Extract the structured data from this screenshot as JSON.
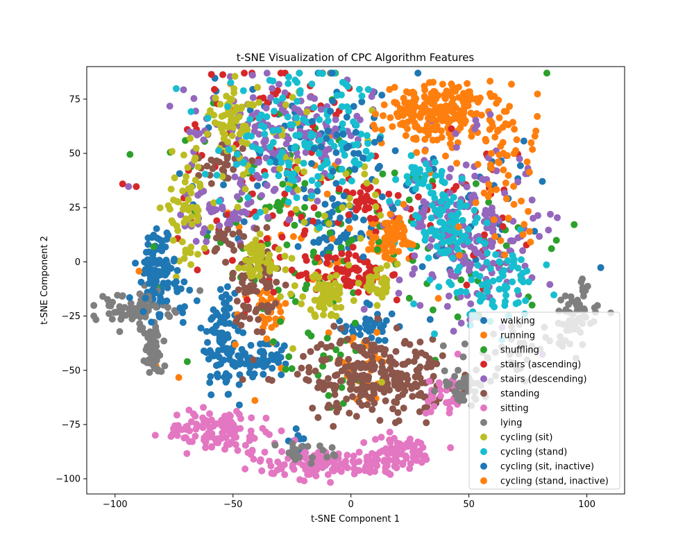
{
  "chart_data": {
    "type": "scatter",
    "title": "t-SNE Visualization of CPC Algorithm Features",
    "xlabel": "t-SNE Component 1",
    "ylabel": "t-SNE Component 2",
    "xlim": [
      -112,
      116
    ],
    "ylim": [
      -107,
      90
    ],
    "xticks": [
      -100,
      -50,
      0,
      50,
      100
    ],
    "yticks": [
      -100,
      -75,
      -50,
      -25,
      0,
      25,
      50,
      75
    ],
    "xtick_labels": [
      "−100",
      "−50",
      "0",
      "50",
      "100"
    ],
    "ytick_labels": [
      "−100",
      "−75",
      "−50",
      "−25",
      "0",
      "25",
      "50",
      "75"
    ],
    "grid": false,
    "legend_position": "lower-right",
    "series": [
      {
        "name": "walking",
        "color": "#1f77b4",
        "clusters": [
          {
            "x": -82,
            "y": -5,
            "sx": 3,
            "sy": 12,
            "n": 70
          },
          {
            "x": -55,
            "y": -35,
            "sx": 4,
            "sy": 15,
            "n": 90
          },
          {
            "x": -38,
            "y": -45,
            "sx": 6,
            "sy": 5,
            "n": 60
          },
          {
            "x": -10,
            "y": 12,
            "sx": 5,
            "sy": 6,
            "n": 40
          },
          {
            "x": 8,
            "y": -30,
            "sx": 6,
            "sy": 6,
            "n": 40
          },
          {
            "x": -20,
            "y": 50,
            "sx": 25,
            "sy": 20,
            "n": 80
          },
          {
            "x": -23,
            "y": -82,
            "sx": 2,
            "sy": 2,
            "n": 10
          },
          {
            "x": 50,
            "y": 20,
            "sx": 20,
            "sy": 20,
            "n": 40
          }
        ]
      },
      {
        "name": "running",
        "color": "#ff7f0e",
        "clusters": [
          {
            "x": 40,
            "y": 68,
            "sx": 13,
            "sy": 7,
            "n": 200
          },
          {
            "x": 15,
            "y": 10,
            "sx": 3,
            "sy": 5,
            "n": 50
          },
          {
            "x": -35,
            "y": -25,
            "sx": 4,
            "sy": 8,
            "n": 30
          },
          {
            "x": 5,
            "y": -50,
            "sx": 8,
            "sy": 8,
            "n": 30
          },
          {
            "x": -20,
            "y": 10,
            "sx": 30,
            "sy": 30,
            "n": 40
          }
        ]
      },
      {
        "name": "shuffling",
        "color": "#2ca02c",
        "clusters": [
          {
            "x": -30,
            "y": 20,
            "sx": 25,
            "sy": 30,
            "n": 100
          },
          {
            "x": 50,
            "y": 10,
            "sx": 20,
            "sy": 25,
            "n": 40
          },
          {
            "x": -10,
            "y": -50,
            "sx": 10,
            "sy": 10,
            "n": 20
          }
        ]
      },
      {
        "name": "stairs (ascending)",
        "color": "#d62728",
        "clusters": [
          {
            "x": 0,
            "y": -5,
            "sx": 8,
            "sy": 5,
            "n": 70
          },
          {
            "x": 5,
            "y": 28,
            "sx": 5,
            "sy": 5,
            "n": 30
          },
          {
            "x": -30,
            "y": 40,
            "sx": 25,
            "sy": 30,
            "n": 100
          },
          {
            "x": 50,
            "y": 30,
            "sx": 15,
            "sy": 20,
            "n": 40
          }
        ]
      },
      {
        "name": "stairs (descending)",
        "color": "#9467bd",
        "clusters": [
          {
            "x": -30,
            "y": 60,
            "sx": 20,
            "sy": 12,
            "n": 150
          },
          {
            "x": 50,
            "y": 15,
            "sx": 15,
            "sy": 20,
            "n": 200
          },
          {
            "x": -55,
            "y": 20,
            "sx": 10,
            "sy": 8,
            "n": 50
          }
        ]
      },
      {
        "name": "standing",
        "color": "#8c564b",
        "clusters": [
          {
            "x": 10,
            "y": -52,
            "sx": 15,
            "sy": 9,
            "n": 250
          },
          {
            "x": -40,
            "y": -15,
            "sx": 5,
            "sy": 15,
            "n": 70
          },
          {
            "x": -55,
            "y": 45,
            "sx": 5,
            "sy": 5,
            "n": 30
          },
          {
            "x": -50,
            "y": 10,
            "sx": 5,
            "sy": 5,
            "n": 20
          }
        ]
      },
      {
        "name": "sitting",
        "color": "#e377c2",
        "clusters": [
          {
            "x": -10,
            "y": -93,
            "sx": 15,
            "sy": 3,
            "n": 130
          },
          {
            "x": 20,
            "y": -88,
            "sx": 8,
            "sy": 4,
            "n": 70
          },
          {
            "x": -55,
            "y": -78,
            "sx": 12,
            "sy": 5,
            "n": 120
          },
          {
            "x": 40,
            "y": -60,
            "sx": 4,
            "sy": 6,
            "n": 30
          }
        ]
      },
      {
        "name": "lying",
        "color": "#7f7f7f",
        "clusters": [
          {
            "x": -93,
            "y": -22,
            "sx": 8,
            "sy": 4,
            "n": 70
          },
          {
            "x": -84,
            "y": -40,
            "sx": 2,
            "sy": 6,
            "n": 70
          },
          {
            "x": 70,
            "y": -40,
            "sx": 10,
            "sy": 6,
            "n": 40
          },
          {
            "x": 95,
            "y": -25,
            "sx": 5,
            "sy": 8,
            "n": 60
          },
          {
            "x": 48,
            "y": -58,
            "sx": 5,
            "sy": 4,
            "n": 40
          },
          {
            "x": -20,
            "y": -88,
            "sx": 6,
            "sy": 2,
            "n": 20
          }
        ]
      },
      {
        "name": "cycling (sit)",
        "color": "#bcbd22",
        "clusters": [
          {
            "x": -10,
            "y": -15,
            "sx": 5,
            "sy": 5,
            "n": 60
          },
          {
            "x": -40,
            "y": 0,
            "sx": 5,
            "sy": 5,
            "n": 50
          },
          {
            "x": 12,
            "y": -10,
            "sx": 4,
            "sy": 4,
            "n": 30
          },
          {
            "x": -50,
            "y": 65,
            "sx": 5,
            "sy": 8,
            "n": 60
          },
          {
            "x": -70,
            "y": 25,
            "sx": 5,
            "sy": 12,
            "n": 60
          },
          {
            "x": -20,
            "y": 30,
            "sx": 20,
            "sy": 25,
            "n": 60
          }
        ]
      },
      {
        "name": "cycling (stand)",
        "color": "#17becf",
        "clusters": [
          {
            "x": -20,
            "y": 55,
            "sx": 18,
            "sy": 15,
            "n": 150
          },
          {
            "x": 40,
            "y": 18,
            "sx": 8,
            "sy": 8,
            "n": 80
          },
          {
            "x": 60,
            "y": -10,
            "sx": 10,
            "sy": 10,
            "n": 80
          },
          {
            "x": 30,
            "y": 40,
            "sx": 5,
            "sy": 3,
            "n": 30
          }
        ]
      },
      {
        "name": "cycling (sit, inactive)",
        "color": "#1f77b4",
        "clusters": [
          {
            "x": -80,
            "y": -10,
            "sx": 5,
            "sy": 8,
            "n": 40
          },
          {
            "x": -5,
            "y": 55,
            "sx": 10,
            "sy": 15,
            "n": 30
          }
        ]
      },
      {
        "name": "cycling (stand, inactive)",
        "color": "#ff7f0e",
        "clusters": [
          {
            "x": 35,
            "y": 70,
            "sx": 10,
            "sy": 6,
            "n": 40
          },
          {
            "x": 65,
            "y": 40,
            "sx": 8,
            "sy": 15,
            "n": 50
          },
          {
            "x": 18,
            "y": 15,
            "sx": 4,
            "sy": 6,
            "n": 30
          }
        ]
      }
    ]
  }
}
